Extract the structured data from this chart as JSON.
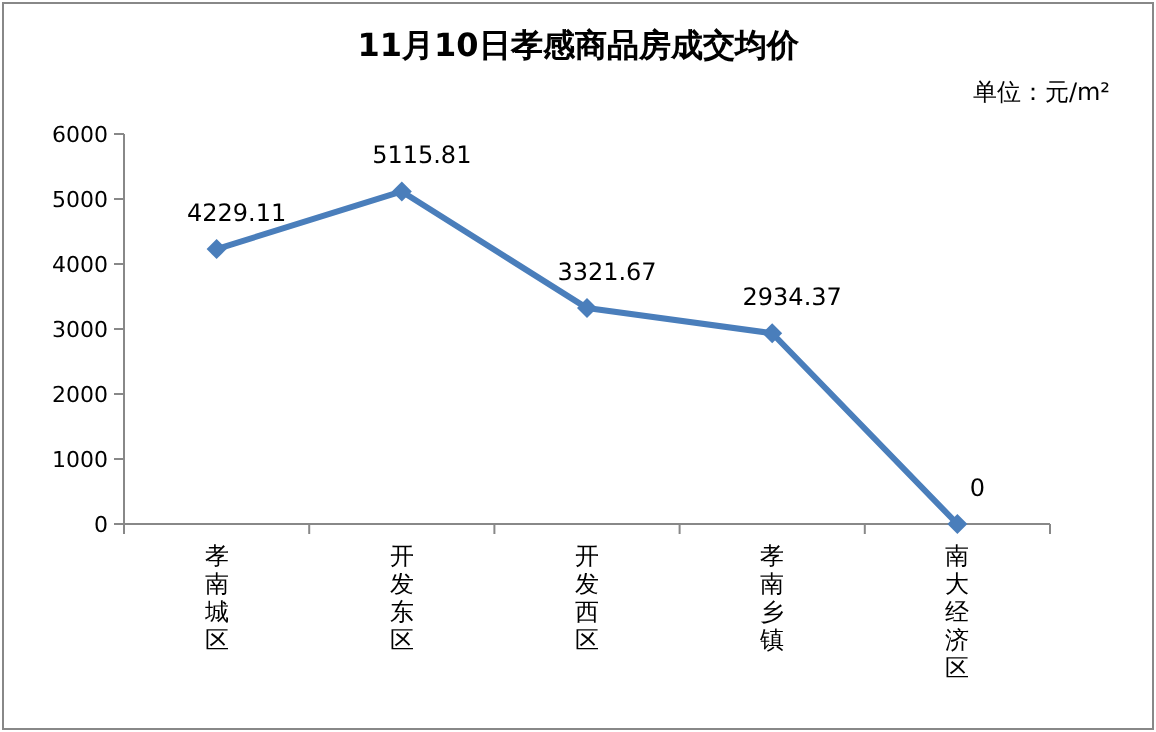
{
  "chart_data": {
    "type": "line",
    "title": "11月10日孝感商品房成交均价",
    "annotations": [
      "单位：元/m²"
    ],
    "categories": [
      "孝南城区",
      "开发东区",
      "开发西区",
      "孝南乡镇",
      "南大经济区"
    ],
    "series": [
      {
        "color": "#4a7ebb",
        "values": [
          4229.11,
          5115.81,
          3321.67,
          2934.37,
          0
        ]
      }
    ],
    "ylim": [
      0,
      6000
    ],
    "yticks": [
      0,
      1000,
      2000,
      3000,
      4000,
      5000,
      6000
    ],
    "data_labels": true,
    "marker": "diamond",
    "line_style": "solid",
    "grid": false
  }
}
